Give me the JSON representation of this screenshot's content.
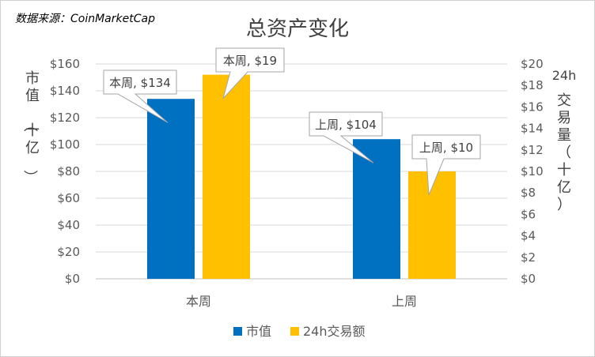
{
  "source": "数据来源：CoinMarketCap",
  "chart_data": {
    "type": "bar",
    "title": "总资产变化",
    "categories": [
      "本周",
      "上周"
    ],
    "series": [
      {
        "name": "市值",
        "axis": "left",
        "values": [
          134,
          104
        ],
        "color": "#0070c0",
        "callouts": [
          "本周, $134",
          "上周, $104"
        ]
      },
      {
        "name": "24h交易额",
        "axis": "right",
        "values": [
          19,
          10
        ],
        "color": "#ffc000",
        "callouts": [
          "本周, $19",
          "上周, $10"
        ]
      }
    ],
    "y_left": {
      "label": "市值（十亿）",
      "min": 0,
      "max": 160,
      "step": 20,
      "ticks": [
        "$0",
        "$20",
        "$40",
        "$60",
        "$80",
        "$100",
        "$120",
        "$140",
        "$160"
      ]
    },
    "y_right": {
      "label": "24h交易量（十亿）",
      "min": 0,
      "max": 20,
      "step": 2,
      "ticks": [
        "$0",
        "$2",
        "$4",
        "$6",
        "$8",
        "$10",
        "$12",
        "$14",
        "$16",
        "$18",
        "$20"
      ]
    },
    "grid": true,
    "legend": "bottom"
  }
}
